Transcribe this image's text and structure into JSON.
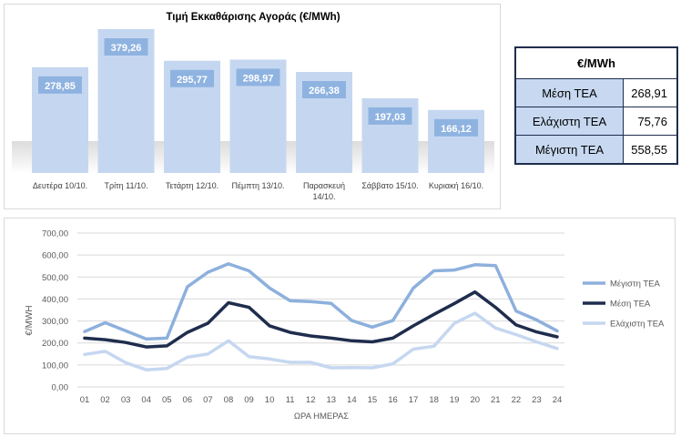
{
  "bar_chart": {
    "type": "bar",
    "title": "Τιμή Εκκαθάρισης Αγοράς (€/MWh)",
    "categories": [
      "Δευτέρα 10/10.",
      "Τρίτη 11/10.",
      "Τετάρτη 12/10.",
      "Πέμπτη 13/10.",
      "Παρασκευή 14/10.",
      "Σάββατο 15/10.",
      "Κυριακή 16/10."
    ],
    "category_lines": [
      [
        "Δευτέρα 10/10."
      ],
      [
        "Τρίτη 11/10."
      ],
      [
        "Τετάρτη 12/10."
      ],
      [
        "Πέμπτη 13/10."
      ],
      [
        "Παρασκευή",
        "14/10."
      ],
      [
        "Σάββατο 15/10."
      ],
      [
        "Κυριακή 16/10."
      ]
    ],
    "values": [
      278.85,
      379.26,
      295.77,
      298.97,
      266.38,
      197.03,
      166.12
    ],
    "value_labels": [
      "278,85",
      "379,26",
      "295,77",
      "298,97",
      "266,38",
      "197,03",
      "166,12"
    ],
    "bar_color": "#c5d7f0",
    "label_color": "#8fb3e0"
  },
  "stats_table": {
    "header": "€/MWh",
    "rows": [
      {
        "label": "Μέση ΤΕΑ",
        "value": "268,91"
      },
      {
        "label": "Ελάχιστη ΤΕΑ",
        "value": "75,76"
      },
      {
        "label": "Μέγιστη ΤΕΑ",
        "value": "558,55"
      }
    ]
  },
  "chart_data": {
    "type": "line",
    "x": [
      "01",
      "02",
      "03",
      "04",
      "05",
      "06",
      "07",
      "08",
      "09",
      "10",
      "11",
      "12",
      "13",
      "14",
      "15",
      "16",
      "17",
      "18",
      "19",
      "20",
      "21",
      "22",
      "23",
      "24"
    ],
    "xlabel": "ΩΡΑ ΗΜΕΡΑΣ",
    "ylabel": "€/MWH",
    "ylim": [
      0,
      700
    ],
    "yticks": [
      "0,00",
      "100,00",
      "200,00",
      "300,00",
      "400,00",
      "500,00",
      "600,00",
      "700,00"
    ],
    "grid": true,
    "legend": "right",
    "series": [
      {
        "name": "Μέγιστη ΤΕΑ",
        "color": "#8db0dd",
        "values": [
          252,
          292,
          255,
          218,
          222,
          455,
          522,
          560,
          528,
          450,
          392,
          388,
          380,
          302,
          272,
          302,
          450,
          528,
          532,
          556,
          552,
          345,
          305,
          255
        ]
      },
      {
        "name": "Μέση ΤΕΑ",
        "color": "#1f2d4d",
        "values": [
          222,
          215,
          202,
          182,
          187,
          248,
          290,
          383,
          362,
          278,
          248,
          232,
          222,
          210,
          205,
          222,
          278,
          330,
          380,
          432,
          362,
          282,
          250,
          228
        ]
      },
      {
        "name": "Ελάχιστη ΤΕΑ",
        "color": "#c5d7f0",
        "values": [
          148,
          162,
          110,
          78,
          84,
          135,
          150,
          210,
          138,
          127,
          112,
          112,
          87,
          88,
          87,
          105,
          172,
          185,
          290,
          335,
          268,
          238,
          205,
          175
        ]
      }
    ]
  }
}
